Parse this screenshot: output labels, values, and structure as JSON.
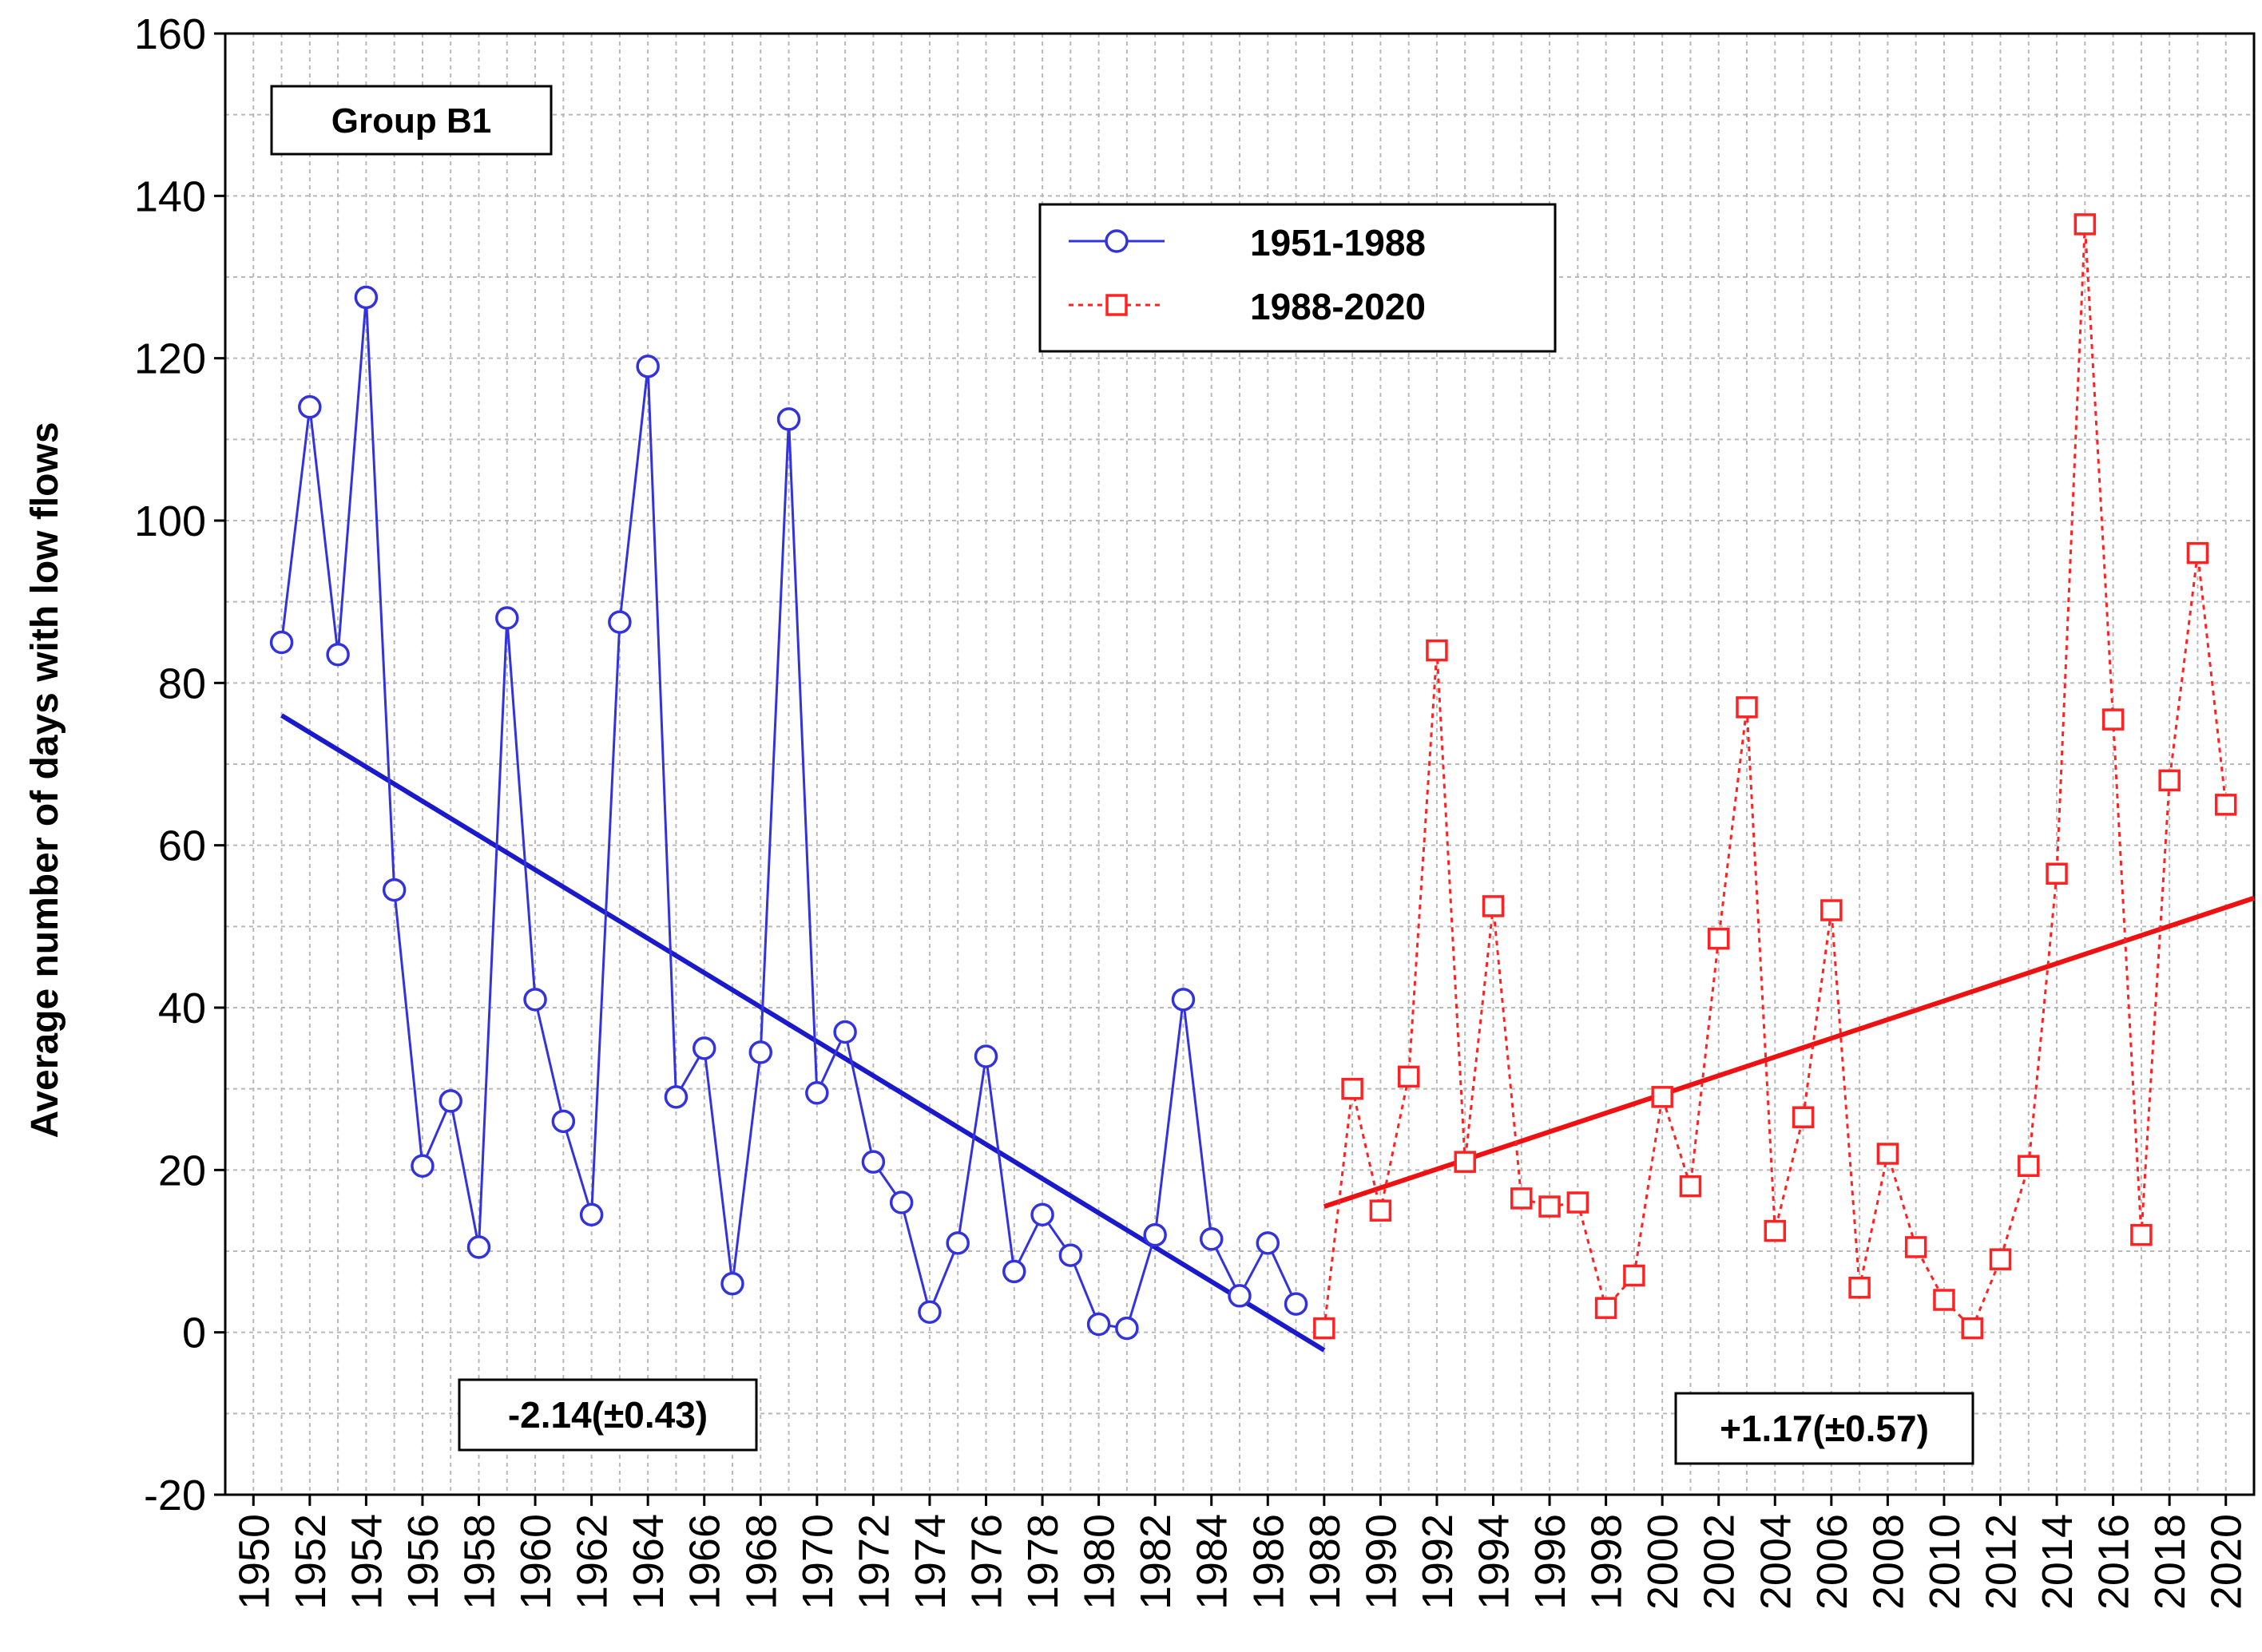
{
  "chart_data": {
    "type": "line",
    "title": "",
    "xlabel": "",
    "ylabel": "Average number of days with low flows",
    "group_label": "Group B1",
    "xlim": [
      1949,
      2021
    ],
    "ylim": [
      -20,
      160
    ],
    "yticks": [
      -20,
      0,
      20,
      40,
      60,
      80,
      100,
      120,
      140,
      160
    ],
    "xticks": [
      1950,
      1952,
      1954,
      1956,
      1958,
      1960,
      1962,
      1964,
      1966,
      1968,
      1970,
      1972,
      1974,
      1976,
      1978,
      1980,
      1982,
      1984,
      1986,
      1988,
      1990,
      1992,
      1994,
      1996,
      1998,
      2000,
      2002,
      2004,
      2006,
      2008,
      2010,
      2012,
      2014,
      2016,
      2018,
      2020
    ],
    "grid": true,
    "legend_position": "top-center",
    "series": [
      {
        "name": "1951-1988",
        "color": "#3333dd",
        "marker": "circle",
        "line_style": "solid",
        "x": [
          1951,
          1952,
          1953,
          1954,
          1955,
          1956,
          1957,
          1958,
          1959,
          1960,
          1961,
          1962,
          1963,
          1964,
          1965,
          1966,
          1967,
          1968,
          1969,
          1970,
          1971,
          1972,
          1973,
          1974,
          1975,
          1976,
          1977,
          1978,
          1979,
          1980,
          1981,
          1982,
          1983,
          1984,
          1985,
          1986,
          1987
        ],
        "values": [
          85,
          114,
          83.5,
          127.5,
          54.5,
          20.5,
          28.5,
          10.5,
          88,
          41,
          26,
          14.5,
          87.5,
          119,
          29,
          35,
          6,
          34.5,
          112.5,
          29.5,
          37,
          21,
          16,
          2.5,
          11,
          34,
          7.5,
          14.5,
          9.5,
          1,
          0.5,
          12,
          41,
          11.5,
          4.5,
          11,
          3.5
        ]
      },
      {
        "name": "1988-2020",
        "color": "#ff2222",
        "marker": "square",
        "line_style": "dotted",
        "x": [
          1988,
          1989,
          1990,
          1991,
          1992,
          1993,
          1994,
          1995,
          1996,
          1997,
          1998,
          1999,
          2000,
          2001,
          2002,
          2003,
          2004,
          2005,
          2006,
          2007,
          2008,
          2009,
          2010,
          2011,
          2012,
          2013,
          2014,
          2015,
          2016,
          2017,
          2018,
          2019,
          2020
        ],
        "values": [
          0.5,
          30,
          15,
          31.5,
          84,
          21,
          52.5,
          16.5,
          15.5,
          16,
          3,
          7,
          29,
          18,
          48.5,
          77,
          12.5,
          26.5,
          52,
          5.5,
          22,
          10.5,
          4,
          0.5,
          9,
          20.5,
          56.5,
          136.5,
          75.5,
          12,
          68,
          96,
          65
        ]
      }
    ],
    "trendlines": [
      {
        "name": "trend-1951-1988",
        "color": "#1a1acc",
        "x": [
          1951,
          1988
        ],
        "y": [
          76,
          -2.2
        ],
        "label": "-2.14(±0.43)"
      },
      {
        "name": "trend-1988-2020",
        "color": "#ee1111",
        "x": [
          1988,
          2021
        ],
        "y": [
          15.5,
          53.5
        ],
        "label": "+1.17(±0.57)"
      }
    ]
  }
}
